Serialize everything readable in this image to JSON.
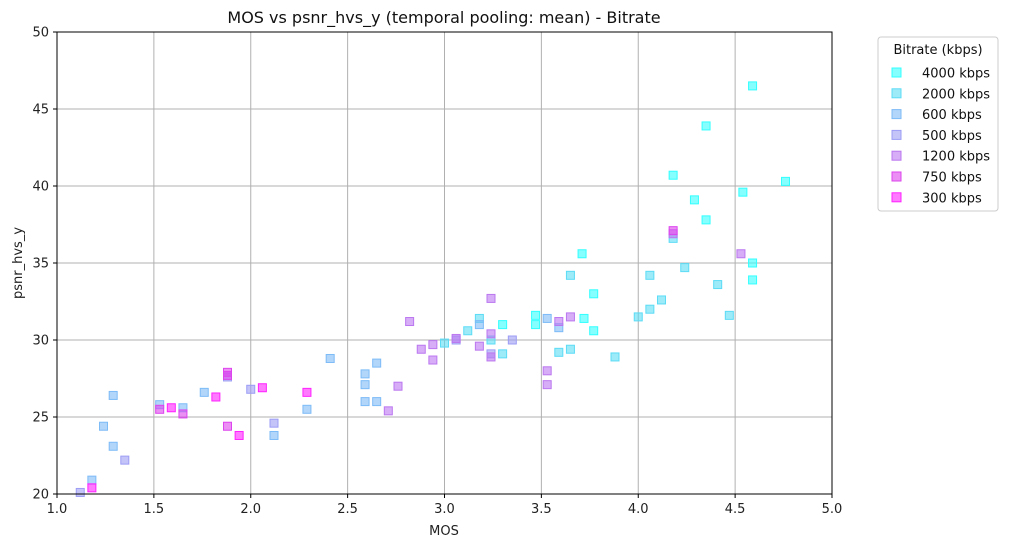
{
  "chart_data": {
    "type": "scatter",
    "title": "MOS vs psnr_hvs_y (temporal pooling: mean) - Bitrate",
    "xlabel": "MOS",
    "ylabel": "psnr_hvs_y",
    "xlim": [
      1.0,
      5.0
    ],
    "ylim": [
      20,
      50
    ],
    "xticks": [
      "1.0",
      "1.5",
      "2.0",
      "2.5",
      "3.0",
      "3.5",
      "4.0",
      "4.5",
      "5.0"
    ],
    "yticks": [
      "20",
      "25",
      "30",
      "35",
      "40",
      "45",
      "50"
    ],
    "grid": true,
    "legend_title": "Bitrate (kbps)",
    "legend_position": "outside-right",
    "series": [
      {
        "name": "4000 kbps",
        "color": "#33ffff",
        "points": [
          [
            4.59,
            46.5
          ],
          [
            4.35,
            43.9
          ],
          [
            4.76,
            40.3
          ],
          [
            4.18,
            40.7
          ],
          [
            4.29,
            39.1
          ],
          [
            4.54,
            39.6
          ],
          [
            4.35,
            37.8
          ],
          [
            4.59,
            35.0
          ],
          [
            4.59,
            33.9
          ],
          [
            3.71,
            35.6
          ],
          [
            3.77,
            33.0
          ],
          [
            3.72,
            31.4
          ],
          [
            3.77,
            30.6
          ],
          [
            3.47,
            31.6
          ],
          [
            3.47,
            31.0
          ],
          [
            3.3,
            31.0
          ]
        ]
      },
      {
        "name": "2000 kbps",
        "color": "#5cdcf5",
        "points": [
          [
            4.18,
            36.6
          ],
          [
            4.24,
            34.7
          ],
          [
            4.06,
            34.2
          ],
          [
            4.41,
            33.6
          ],
          [
            4.12,
            32.6
          ],
          [
            4.06,
            32.0
          ],
          [
            4.0,
            31.5
          ],
          [
            4.47,
            31.6
          ],
          [
            3.65,
            34.2
          ],
          [
            3.18,
            31.4
          ],
          [
            3.12,
            30.6
          ],
          [
            3.24,
            30.0
          ],
          [
            3.0,
            29.8
          ],
          [
            3.88,
            28.9
          ],
          [
            3.65,
            29.4
          ],
          [
            3.59,
            29.2
          ],
          [
            3.3,
            29.1
          ]
        ]
      },
      {
        "name": "600 kbps",
        "color": "#7dbbf7",
        "points": [
          [
            2.41,
            28.8
          ],
          [
            2.65,
            28.5
          ],
          [
            2.59,
            27.8
          ],
          [
            2.59,
            27.1
          ],
          [
            2.59,
            26.0
          ],
          [
            2.65,
            26.0
          ],
          [
            2.29,
            25.5
          ],
          [
            2.12,
            23.8
          ],
          [
            1.76,
            26.6
          ],
          [
            1.65,
            25.6
          ],
          [
            1.53,
            25.8
          ],
          [
            1.29,
            26.4
          ],
          [
            1.24,
            24.4
          ],
          [
            1.29,
            23.1
          ],
          [
            1.18,
            20.9
          ],
          [
            3.53,
            31.4
          ],
          [
            3.59,
            30.8
          ],
          [
            3.18,
            31.0
          ]
        ]
      },
      {
        "name": "500 kbps",
        "color": "#9c9cf5",
        "points": [
          [
            2.12,
            24.6
          ],
          [
            2.0,
            26.8
          ],
          [
            1.88,
            27.6
          ],
          [
            1.35,
            22.2
          ],
          [
            1.12,
            20.1
          ],
          [
            3.06,
            30.0
          ],
          [
            3.35,
            30.0
          ],
          [
            3.24,
            29.1
          ]
        ]
      },
      {
        "name": "1200 kbps",
        "color": "#bb77f0",
        "points": [
          [
            4.53,
            35.6
          ],
          [
            4.18,
            36.9
          ],
          [
            3.24,
            32.7
          ],
          [
            3.65,
            31.5
          ],
          [
            3.59,
            31.2
          ],
          [
            2.82,
            31.2
          ],
          [
            3.06,
            30.1
          ],
          [
            3.24,
            30.4
          ],
          [
            3.18,
            29.6
          ],
          [
            2.94,
            29.7
          ],
          [
            2.88,
            29.4
          ],
          [
            2.94,
            28.7
          ],
          [
            3.24,
            28.9
          ],
          [
            3.53,
            28.0
          ],
          [
            3.53,
            27.1
          ],
          [
            2.76,
            27.0
          ],
          [
            2.71,
            25.4
          ]
        ]
      },
      {
        "name": "750 kbps",
        "color": "#dd44ee",
        "points": [
          [
            4.18,
            37.1
          ],
          [
            1.88,
            27.9
          ],
          [
            1.88,
            27.7
          ],
          [
            1.88,
            24.4
          ],
          [
            1.53,
            25.5
          ],
          [
            1.65,
            25.2
          ]
        ]
      },
      {
        "name": "300 kbps",
        "color": "#ff22ff",
        "points": [
          [
            2.06,
            26.9
          ],
          [
            2.29,
            26.6
          ],
          [
            1.82,
            26.3
          ],
          [
            1.59,
            25.6
          ],
          [
            1.94,
            23.8
          ],
          [
            1.18,
            20.4
          ]
        ]
      }
    ]
  }
}
